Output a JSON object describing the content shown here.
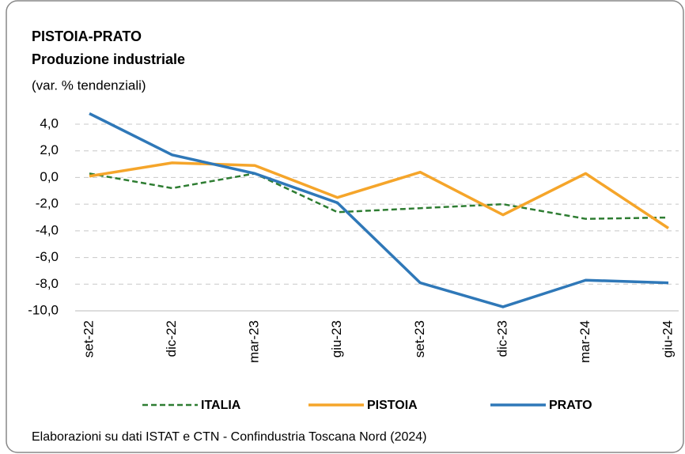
{
  "chart_data": {
    "type": "line",
    "title": "PISTOIA-PRATO",
    "subtitle": "Produzione industriale",
    "y_label": "(var. % tendenziali)",
    "source": "Elaborazioni su dati ISTAT e CTN - Confindustria Toscana Nord (2024)",
    "categories": [
      "set-22",
      "dic-22",
      "mar-23",
      "giu-23",
      "set-23",
      "dic-23",
      "mar-24",
      "giu-24"
    ],
    "series": [
      {
        "name": "ITALIA",
        "color": "#2e7d32",
        "dashed": true,
        "values": [
          0.3,
          -0.8,
          0.3,
          -2.6,
          -2.3,
          -2.0,
          -3.1,
          -3.0
        ]
      },
      {
        "name": "PISTOIA",
        "color": "#f5a52a",
        "values": [
          0.1,
          1.1,
          0.9,
          -1.5,
          0.4,
          -2.8,
          0.3,
          -3.8
        ]
      },
      {
        "name": "PRATO",
        "color": "#2f78b8",
        "values": [
          4.8,
          1.7,
          0.3,
          -1.9,
          -7.9,
          -9.7,
          -7.7,
          -7.9
        ]
      }
    ],
    "ylim": [
      -10,
      5
    ],
    "yticks": [
      {
        "value": -10,
        "label": "-10,0"
      },
      {
        "value": -8,
        "label": "-8,0"
      },
      {
        "value": -6,
        "label": "-6,0"
      },
      {
        "value": -4,
        "label": "-4,0"
      },
      {
        "value": -2,
        "label": "-2,0"
      },
      {
        "value": 0,
        "label": "0,0"
      },
      {
        "value": 2,
        "label": "2,0"
      },
      {
        "value": 4,
        "label": "4,0"
      }
    ],
    "grid": true
  }
}
